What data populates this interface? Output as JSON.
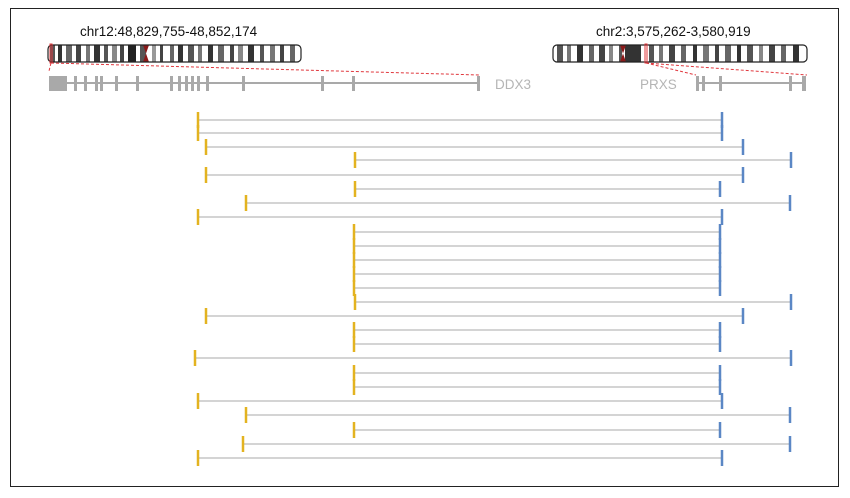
{
  "panel_left": {
    "locus": "chr12:48,829,755-48,852,174",
    "gene": "DDX3"
  },
  "panel_right": {
    "locus": "chr2:3,575,262-3,580,919",
    "gene": "PRXS"
  },
  "colors": {
    "left_breakpoint": "#e3b320",
    "right_breakpoint": "#5b87c5",
    "read_line": "#a8a8a8",
    "gene_model": "#a9a9a9",
    "zoom_guide": "#e0383e",
    "centromere": "#8b1a1a"
  }
}
